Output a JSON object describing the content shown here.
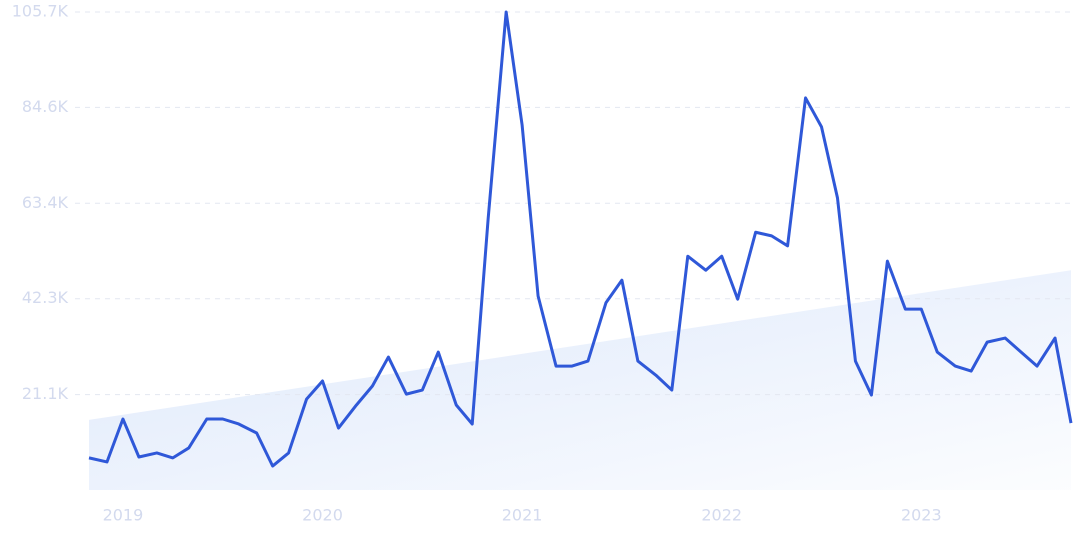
{
  "chart_data": {
    "type": "line",
    "x": [
      2018.83,
      2018.92,
      2019,
      2019.08,
      2019.17,
      2019.25,
      2019.33,
      2019.42,
      2019.5,
      2019.58,
      2019.67,
      2019.75,
      2019.83,
      2019.92,
      2020,
      2020.08,
      2020.17,
      2020.25,
      2020.33,
      2020.42,
      2020.5,
      2020.58,
      2020.67,
      2020.75,
      2020.83,
      2020.92,
      2021,
      2021.08,
      2021.17,
      2021.25,
      2021.33,
      2021.42,
      2021.5,
      2021.58,
      2021.67,
      2021.75,
      2021.83,
      2021.92,
      2022,
      2022.08,
      2022.17,
      2022.25,
      2022.33,
      2022.42,
      2022.5,
      2022.58,
      2022.67,
      2022.75,
      2022.83,
      2022.92,
      2023,
      2023.08,
      2023.17,
      2023.25,
      2023.33,
      2023.42,
      2023.5,
      2023.58,
      2023.67,
      2023.75
    ],
    "series": [
      {
        "color": "#2f58d8",
        "values": [
          7100,
          6200,
          15700,
          7300,
          8200,
          7100,
          9300,
          15700,
          15700,
          14600,
          12600,
          5300,
          8200,
          20100,
          24100,
          13700,
          18800,
          23000,
          29400,
          21200,
          22100,
          30500,
          18800,
          14600,
          60100,
          105700,
          80700,
          42900,
          27400,
          27400,
          28500,
          41400,
          46400,
          28500,
          25400,
          22100,
          51700,
          48600,
          51700,
          42200,
          57000,
          56200,
          54000,
          86700,
          80300,
          64600,
          28500,
          21000,
          50600,
          40000,
          40000,
          30500,
          27400,
          26300,
          32700,
          33600,
          30500,
          27400,
          33600,
          14800
        ]
      }
    ],
    "trend": [
      15500,
      48600
    ],
    "xlim": [
      2018.83,
      2023.75
    ],
    "xticks": [
      2019,
      2020,
      2021,
      2022,
      2023
    ],
    "ylim": [
      0,
      105700
    ],
    "yticks": [
      {
        "value": 21100,
        "label": "21.1K"
      },
      {
        "value": 42300,
        "label": "42.3K"
      },
      {
        "value": 63400,
        "label": "63.4K"
      },
      {
        "value": 84600,
        "label": "84.6K"
      },
      {
        "value": 105700,
        "label": "105.7K"
      }
    ],
    "grid": true
  }
}
